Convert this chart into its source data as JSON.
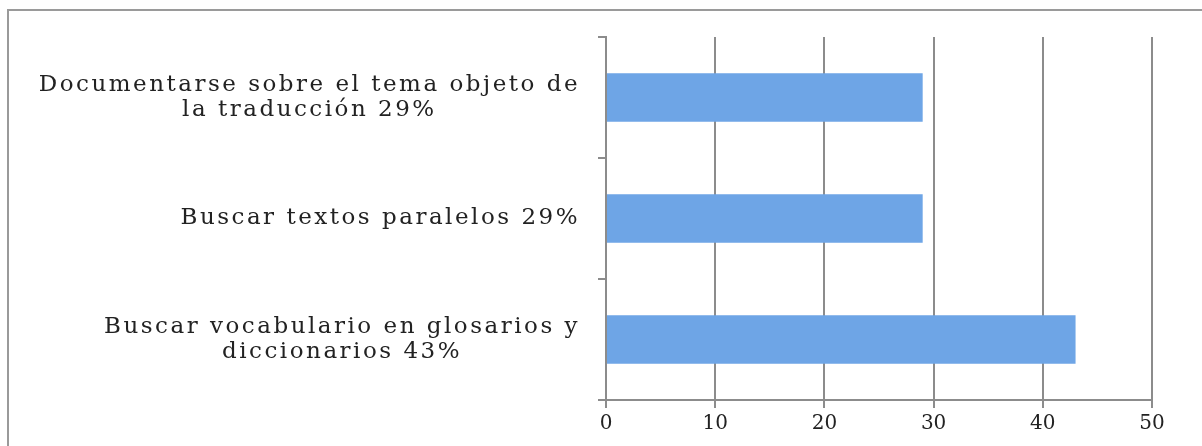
{
  "chart_data": {
    "type": "bar",
    "orientation": "horizontal",
    "categories": [
      "Documentarse sobre el tema objeto de la traducción 29%",
      "Buscar textos paralelos 29%",
      "Buscar vocabulario en glosarios y diccionarios 43%"
    ],
    "values": [
      29,
      29,
      43
    ],
    "color": "#6ea5e6",
    "xlim": [
      0,
      50
    ],
    "xticks": [
      0,
      10,
      20,
      30,
      40,
      50
    ],
    "grid": "x"
  }
}
